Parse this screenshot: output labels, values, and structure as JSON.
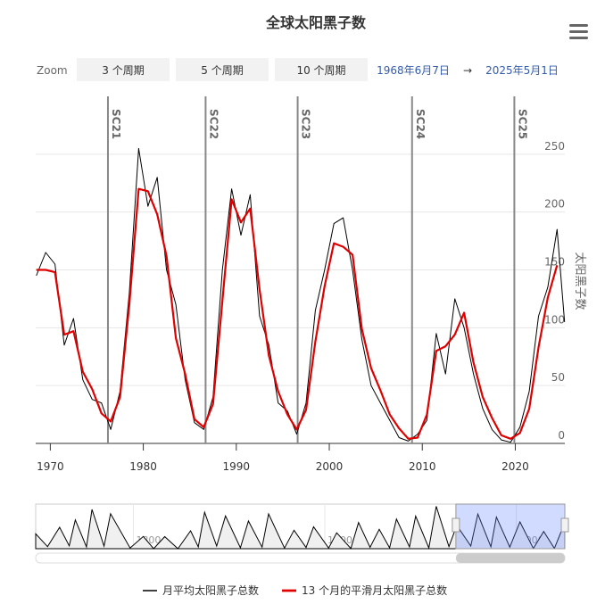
{
  "chart_data": {
    "type": "line",
    "title": "全球太阳黑子数",
    "y_axis_title": "太阳黑子数",
    "zoom": {
      "label": "Zoom",
      "buttons": [
        "3 个周期",
        "5 个周期",
        "10 个周期"
      ]
    },
    "range": {
      "from": "1968年6月7日",
      "arrow": "→",
      "to": "2025年5月1日"
    },
    "xlim": [
      1968.43,
      2025.33
    ],
    "xticks": [
      1970,
      1980,
      1990,
      2000,
      2010,
      2020
    ],
    "ylim": [
      0,
      300
    ],
    "yticks": [
      0,
      50,
      100,
      150,
      200,
      250
    ],
    "grid": true,
    "legend": "bottom",
    "plot_lines": [
      {
        "value": 1976.2,
        "label": "SC21"
      },
      {
        "value": 1986.7,
        "label": "SC22"
      },
      {
        "value": 1996.6,
        "label": "SC23"
      },
      {
        "value": 2008.9,
        "label": "SC24"
      },
      {
        "value": 2019.9,
        "label": "SC25"
      }
    ],
    "x": [
      1968.5,
      1969.5,
      1970.5,
      1971.5,
      1972.5,
      1973.5,
      1974.5,
      1975.5,
      1976.5,
      1977.5,
      1978.5,
      1979.5,
      1980.5,
      1981.5,
      1982.5,
      1983.5,
      1984.5,
      1985.5,
      1986.5,
      1987.5,
      1988.5,
      1989.5,
      1990.5,
      1991.5,
      1992.5,
      1993.5,
      1994.5,
      1995.5,
      1996.5,
      1997.5,
      1998.5,
      1999.5,
      2000.5,
      2001.5,
      2002.5,
      2003.5,
      2004.5,
      2005.5,
      2006.5,
      2007.5,
      2008.5,
      2009.5,
      2010.5,
      2011.5,
      2012.5,
      2013.5,
      2014.5,
      2015.5,
      2016.5,
      2017.5,
      2018.5,
      2019.5,
      2020.5,
      2021.5,
      2022.5,
      2023.5,
      2024.5,
      2025.3
    ],
    "series": [
      {
        "name": "月平均太阳黑子总数",
        "color": "#000000",
        "width": 1,
        "values": [
          145,
          165,
          155,
          85,
          108,
          55,
          38,
          35,
          12,
          45,
          130,
          255,
          205,
          230,
          150,
          120,
          55,
          18,
          12,
          40,
          150,
          220,
          180,
          215,
          110,
          85,
          35,
          28,
          8,
          35,
          115,
          150,
          190,
          195,
          150,
          90,
          50,
          35,
          20,
          5,
          2,
          8,
          20,
          95,
          60,
          125,
          100,
          60,
          30,
          12,
          3,
          1,
          14,
          45,
          110,
          135,
          185,
          105
        ]
      },
      {
        "name": "13 个月的平滑月太阳黑子总数",
        "color": "#e00000",
        "width": 2.2,
        "values": [
          150,
          150,
          148,
          94,
          97,
          62,
          47,
          26,
          19,
          40,
          120,
          220,
          218,
          198,
          162,
          91,
          60,
          21,
          14,
          34,
          123,
          211,
          191,
          203,
          133,
          76,
          45,
          25,
          12,
          29,
          88,
          136,
          173,
          170,
          163,
          99,
          65,
          46,
          25,
          13,
          4,
          5,
          25,
          80,
          84,
          94,
          113,
          70,
          40,
          22,
          7,
          4,
          9,
          30,
          83,
          126,
          154,
          null
        ]
      }
    ],
    "navigator": {
      "xlim": [
        1749,
        2025.33
      ],
      "ylim": [
        0,
        300
      ],
      "xticks": [
        1800,
        1900,
        2000
      ],
      "x": [
        1749,
        1755.2,
        1761.5,
        1766.5,
        1769.7,
        1775.5,
        1778.4,
        1784.7,
        1788.1,
        1798.3,
        1805.2,
        1810.6,
        1816.4,
        1823.3,
        1829.9,
        1833.9,
        1837.2,
        1843.5,
        1848.1,
        1855.9,
        1860.1,
        1867.2,
        1870.6,
        1878.9,
        1883.9,
        1890.2,
        1894.1,
        1902.0,
        1906.2,
        1913.6,
        1917.6,
        1923.6,
        1928.4,
        1933.8,
        1937.4,
        1944.2,
        1947.4,
        1954.3,
        1958.2,
        1964.8,
        1968.9,
        1976.2,
        1979.9,
        1986.7,
        1989.6,
        1996.6,
        2001.9,
        2008.9,
        2014.3,
        2019.9,
        2024.8,
        2025.3
      ],
      "values": [
        100,
        14,
        144,
        19,
        194,
        12,
        264,
        17,
        235,
        5,
        82,
        0,
        81,
        0,
        120,
        12,
        245,
        18,
        220,
        6,
        186,
        10,
        234,
        4,
        124,
        8,
        147,
        4,
        107,
        2,
        176,
        9,
        130,
        6,
        199,
        12,
        219,
        5,
        285,
        14,
        157,
        18,
        233,
        13,
        213,
        11,
        180,
        2,
        116,
        2,
        160,
        140
      ]
    }
  }
}
